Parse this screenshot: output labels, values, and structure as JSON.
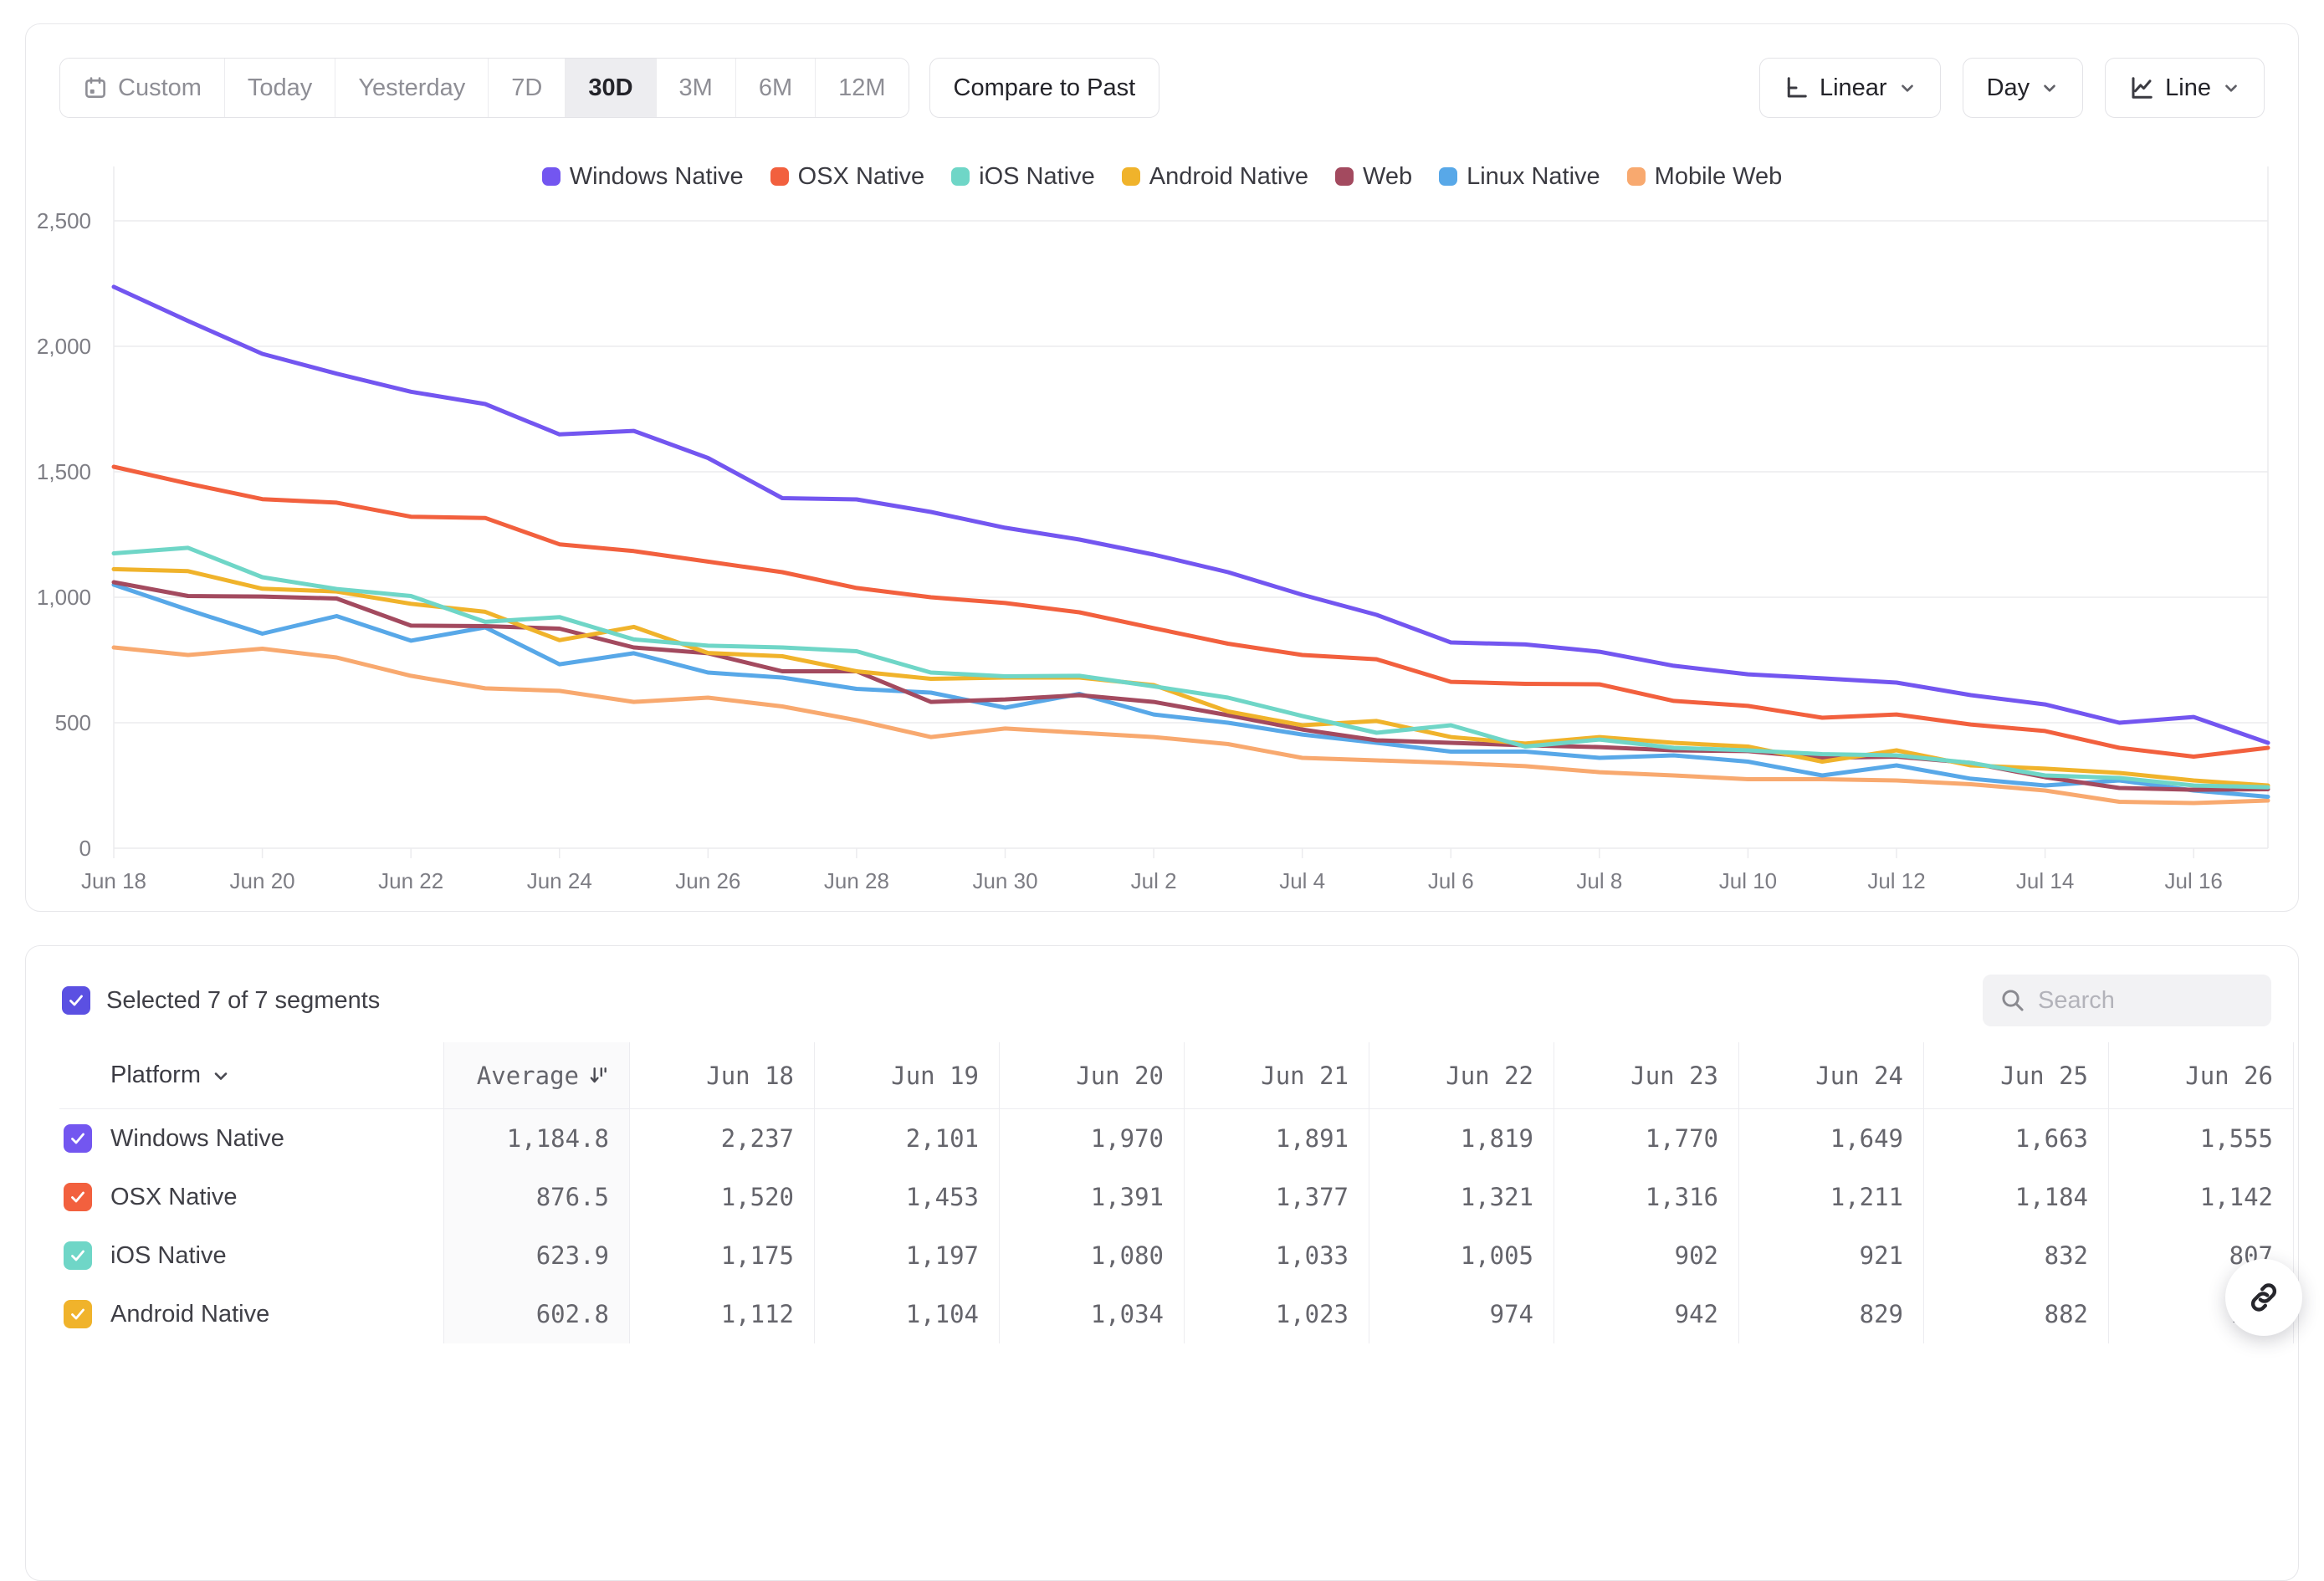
{
  "toolbar": {
    "ranges": [
      "Custom",
      "Today",
      "Yesterday",
      "7D",
      "30D",
      "3M",
      "6M",
      "12M"
    ],
    "active_range": "30D",
    "compare_label": "Compare to Past",
    "scale_label": "Linear",
    "interval_label": "Day",
    "chart_type_label": "Line"
  },
  "chart_data": {
    "type": "line",
    "x": [
      "Jun 18",
      "Jun 19",
      "Jun 20",
      "Jun 21",
      "Jun 22",
      "Jun 23",
      "Jun 24",
      "Jun 25",
      "Jun 26",
      "Jun 27",
      "Jun 28",
      "Jun 29",
      "Jun 30",
      "Jul 1",
      "Jul 2",
      "Jul 3",
      "Jul 4",
      "Jul 5",
      "Jul 6",
      "Jul 7",
      "Jul 8",
      "Jul 9",
      "Jul 10",
      "Jul 11",
      "Jul 12",
      "Jul 13",
      "Jul 14",
      "Jul 15",
      "Jul 16",
      "Jul 17"
    ],
    "x_tick_every": 2,
    "ylim": [
      0,
      2500
    ],
    "y_ticks": [
      {
        "value": 0,
        "label": "0"
      },
      {
        "value": 500,
        "label": "500"
      },
      {
        "value": 1000,
        "label": "1,000"
      },
      {
        "value": 1500,
        "label": "1,500"
      },
      {
        "value": 2000,
        "label": "2,000"
      },
      {
        "value": 2500,
        "label": "2,500"
      }
    ],
    "grid": true,
    "legend_position": "top-center",
    "series": [
      {
        "name": "Windows Native",
        "color": "#7356f0",
        "values": [
          2237,
          2101,
          1970,
          1891,
          1819,
          1770,
          1649,
          1663,
          1555,
          1395,
          1390,
          1340,
          1277,
          1230,
          1170,
          1100,
          1010,
          930,
          820,
          812,
          783,
          727,
          693,
          677,
          660,
          610,
          573,
          500,
          523,
          420
        ]
      },
      {
        "name": "OSX Native",
        "color": "#f2603e",
        "values": [
          1520,
          1453,
          1391,
          1377,
          1321,
          1316,
          1211,
          1184,
          1142,
          1100,
          1037,
          1000,
          977,
          940,
          877,
          815,
          770,
          753,
          663,
          655,
          653,
          587,
          567,
          520,
          533,
          493,
          467,
          400,
          365,
          400
        ]
      },
      {
        "name": "iOS Native",
        "color": "#6fd6c7",
        "values": [
          1175,
          1197,
          1080,
          1033,
          1005,
          902,
          921,
          832,
          807,
          800,
          785,
          700,
          685,
          687,
          645,
          600,
          527,
          460,
          490,
          405,
          433,
          400,
          390,
          375,
          370,
          340,
          290,
          280,
          250,
          243
        ]
      },
      {
        "name": "Android Native",
        "color": "#f0b32b",
        "values": [
          1112,
          1104,
          1034,
          1023,
          974,
          942,
          829,
          882,
          778,
          765,
          705,
          675,
          680,
          680,
          650,
          545,
          490,
          507,
          443,
          417,
          443,
          420,
          405,
          345,
          390,
          330,
          317,
          300,
          270,
          250
        ]
      },
      {
        "name": "Web",
        "color": "#a34a5f",
        "values": [
          1060,
          1005,
          1003,
          995,
          887,
          885,
          875,
          800,
          777,
          705,
          705,
          583,
          593,
          610,
          583,
          530,
          473,
          430,
          420,
          410,
          403,
          390,
          387,
          360,
          365,
          340,
          283,
          240,
          233,
          235
        ]
      },
      {
        "name": "Linux Native",
        "color": "#58a8e8",
        "values": [
          1050,
          950,
          855,
          925,
          827,
          880,
          733,
          777,
          700,
          680,
          635,
          620,
          560,
          615,
          533,
          500,
          453,
          420,
          385,
          385,
          360,
          370,
          345,
          290,
          330,
          277,
          250,
          270,
          230,
          205
        ]
      },
      {
        "name": "Mobile Web",
        "color": "#f8a96f",
        "values": [
          800,
          770,
          795,
          760,
          687,
          637,
          627,
          583,
          600,
          565,
          510,
          443,
          477,
          460,
          443,
          415,
          360,
          350,
          340,
          327,
          303,
          290,
          275,
          275,
          270,
          255,
          230,
          185,
          180,
          190
        ]
      }
    ]
  },
  "segments": {
    "selected_summary": "Selected 7 of 7 segments",
    "selected_checkbox_color": "#5b50e2",
    "search_placeholder": "Search"
  },
  "table": {
    "platform_header": "Platform",
    "average_header": "Average",
    "date_columns": [
      "Jun 18",
      "Jun 19",
      "Jun 20",
      "Jun 21",
      "Jun 22",
      "Jun 23",
      "Jun 24",
      "Jun 25",
      "Jun 26"
    ],
    "rows": [
      {
        "name": "Windows Native",
        "color": "#7356f0",
        "average": "1,184.8",
        "values": [
          "2,237",
          "2,101",
          "1,970",
          "1,891",
          "1,819",
          "1,770",
          "1,649",
          "1,663",
          "1,555"
        ]
      },
      {
        "name": "OSX Native",
        "color": "#f2603e",
        "average": "876.5",
        "values": [
          "1,520",
          "1,453",
          "1,391",
          "1,377",
          "1,321",
          "1,316",
          "1,211",
          "1,184",
          "1,142"
        ]
      },
      {
        "name": "iOS Native",
        "color": "#6fd6c7",
        "average": "623.9",
        "values": [
          "1,175",
          "1,197",
          "1,080",
          "1,033",
          "1,005",
          "902",
          "921",
          "832",
          "807"
        ]
      },
      {
        "name": "Android Native",
        "color": "#f0b32b",
        "average": "602.8",
        "values": [
          "1,112",
          "1,104",
          "1,034",
          "1,023",
          "974",
          "942",
          "829",
          "882",
          "778"
        ]
      }
    ]
  }
}
